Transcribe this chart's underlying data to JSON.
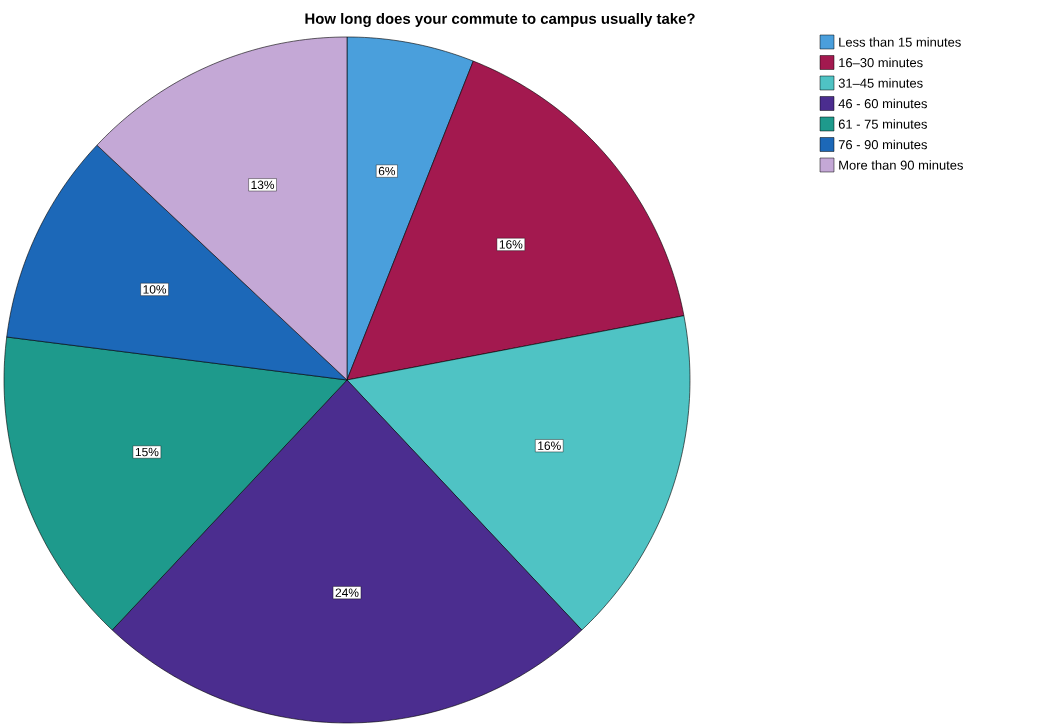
{
  "chart_data": {
    "type": "pie",
    "title": "How long does your commute to campus usually take?",
    "categories": [
      "Less than 15 minutes",
      "16–30 minutes",
      "31–45 minutes",
      "46 - 60 minutes",
      "61 - 75 minutes",
      "76 - 90 minutes",
      "More than 90 minutes"
    ],
    "values": [
      6,
      16,
      16,
      24,
      15,
      10,
      13
    ],
    "value_labels": [
      "6%",
      "16%",
      "16%",
      "24%",
      "15%",
      "10%",
      "13%"
    ],
    "colors": [
      "#4a9fdc",
      "#a3194f",
      "#4fc3c4",
      "#4b2d8f",
      "#1e9a8c",
      "#1c68b8",
      "#c4a8d6"
    ],
    "legend": "top right"
  }
}
